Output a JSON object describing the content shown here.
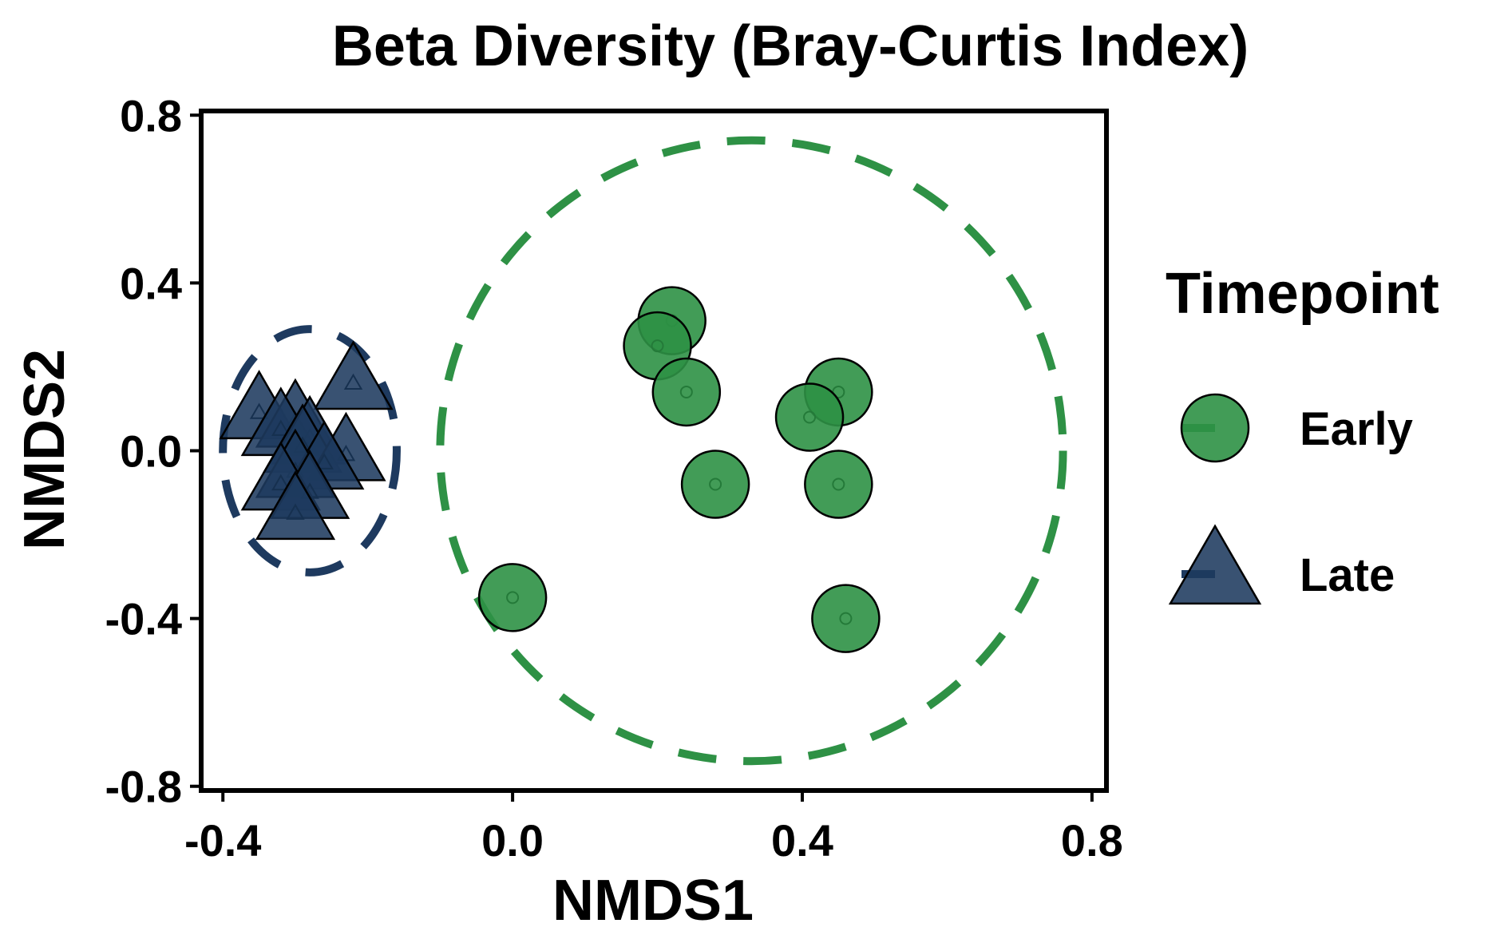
{
  "chart_data": {
    "type": "scatter",
    "title": "Beta Diversity (Bray-Curtis Index)",
    "xlabel": "NMDS1",
    "ylabel": "NMDS2",
    "xlim": [
      -0.43,
      0.82
    ],
    "ylim": [
      -0.81,
      0.81
    ],
    "xticks": [
      -0.4,
      0.0,
      0.4,
      0.8
    ],
    "yticks": [
      -0.8,
      -0.4,
      0.0,
      0.4,
      0.8
    ],
    "xtick_labels": [
      "-0.4",
      "0.0",
      "0.4",
      "0.8"
    ],
    "ytick_labels": [
      "-0.8",
      "-0.4",
      "0.0",
      "0.4",
      "0.8"
    ],
    "grid": false,
    "legend": {
      "title": "Timepoint",
      "position": "right"
    },
    "series": [
      {
        "name": "Early",
        "marker": "circle",
        "color": "#2e9145",
        "points": [
          {
            "x": 0.22,
            "y": 0.31
          },
          {
            "x": 0.2,
            "y": 0.25
          },
          {
            "x": 0.24,
            "y": 0.14
          },
          {
            "x": 0.45,
            "y": 0.14
          },
          {
            "x": 0.41,
            "y": 0.08
          },
          {
            "x": 0.28,
            "y": -0.08
          },
          {
            "x": 0.45,
            "y": -0.08
          },
          {
            "x": 0.0,
            "y": -0.35
          },
          {
            "x": 0.46,
            "y": -0.4
          }
        ],
        "ellipse": {
          "cx": 0.33,
          "cy": 0.0,
          "rx": 0.43,
          "ry": 0.74
        }
      },
      {
        "name": "Late",
        "marker": "triangle",
        "color": "#1e3a5f",
        "points": [
          {
            "x": -0.22,
            "y": 0.16
          },
          {
            "x": -0.35,
            "y": 0.09
          },
          {
            "x": -0.3,
            "y": 0.07
          },
          {
            "x": -0.32,
            "y": 0.05
          },
          {
            "x": -0.28,
            "y": 0.03
          },
          {
            "x": -0.29,
            "y": 0.01
          },
          {
            "x": -0.23,
            "y": -0.01
          },
          {
            "x": -0.26,
            "y": -0.03
          },
          {
            "x": -0.3,
            "y": -0.05
          },
          {
            "x": -0.32,
            "y": -0.08
          },
          {
            "x": -0.28,
            "y": -0.1
          },
          {
            "x": -0.3,
            "y": -0.15
          }
        ],
        "ellipse": {
          "cx": -0.28,
          "cy": 0.0,
          "rx": 0.12,
          "ry": 0.29
        }
      }
    ]
  }
}
